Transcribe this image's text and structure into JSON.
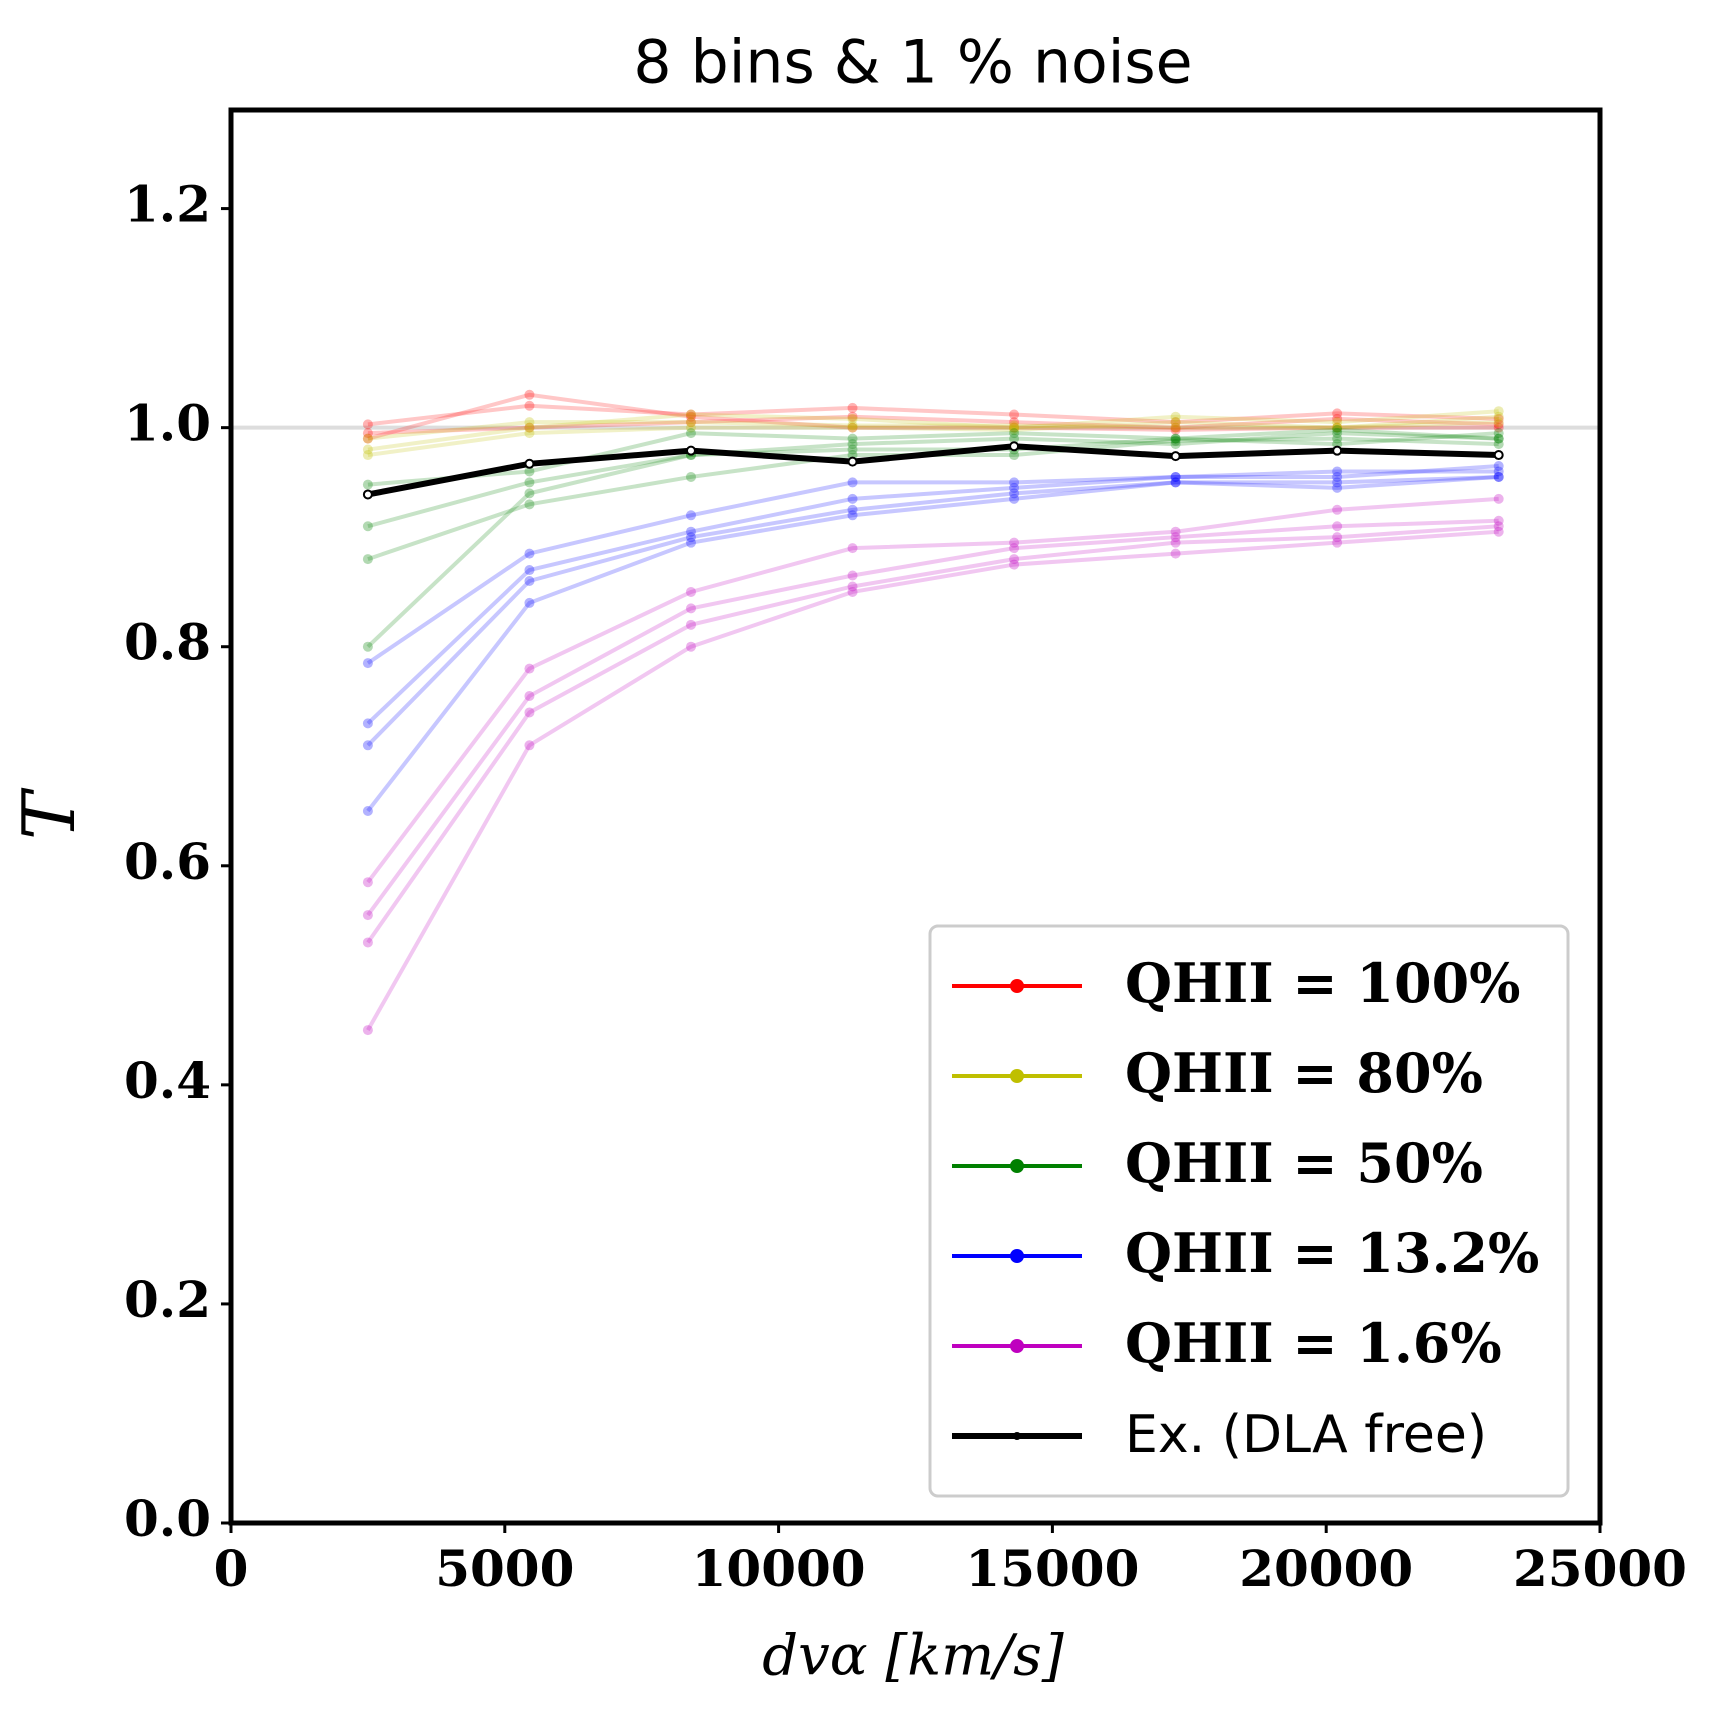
{
  "chart_data": {
    "type": "line",
    "title": "8 bins & 1 % noise",
    "x_label": "dvα [km/s]",
    "y_label": "T",
    "x": [
      2500,
      5450,
      8400,
      11350,
      14300,
      17250,
      20200,
      23150
    ],
    "xlim": [
      0,
      25000
    ],
    "xticks": [
      0,
      5000,
      10000,
      15000,
      20000,
      25000
    ],
    "ylim": [
      0,
      1.29
    ],
    "yticks": [
      {
        "value": 0,
        "label": "0.0"
      },
      0.2,
      0.4,
      0.6,
      0.8,
      {
        "value": 1,
        "label": "1.0"
      },
      1.2
    ],
    "reference_line": 1,
    "legend": "lower right",
    "series": [
      {
        "name": "QHII = 100%",
        "color": "#ff0000",
        "runs": [
          [
            1.003,
            1.02,
            1.012,
            1.018,
            1.012,
            1.005,
            1.013,
            1.008
          ],
          [
            0.995,
            1.0,
            1.005,
            1.01,
            1.005,
            1.0,
            1.008,
            1.003
          ],
          [
            0.99,
            1.03,
            1.01,
            1.0,
            1.0,
            0.998,
            1.0,
            1.0
          ]
        ]
      },
      {
        "name": "QHII = 80%",
        "color": "#bfbf00",
        "runs": [
          [
            0.98,
            1.0,
            1.012,
            1.008,
            1.0,
            1.01,
            1.005,
            1.015
          ],
          [
            0.975,
            0.995,
            1.0,
            1.0,
            0.998,
            1.005,
            1.0,
            1.01
          ],
          [
            0.99,
            1.005,
            1.005,
            1.002,
            1.002,
            1.0,
            1.0,
            1.005
          ]
        ]
      },
      {
        "name": "QHII = 50%",
        "color": "#008000",
        "runs": [
          [
            0.948,
            0.96,
            0.995,
            0.99,
            0.995,
            0.99,
            0.998,
            0.99
          ],
          [
            0.91,
            0.95,
            0.975,
            0.985,
            0.99,
            0.985,
            0.995,
            0.99
          ],
          [
            0.88,
            0.93,
            0.955,
            0.975,
            0.975,
            0.988,
            0.99,
            0.985
          ],
          [
            0.8,
            0.94,
            0.975,
            0.98,
            0.98,
            0.99,
            0.985,
            0.995
          ]
        ]
      },
      {
        "name": "QHII = 13.2%",
        "color": "#0000ff",
        "runs": [
          [
            0.785,
            0.885,
            0.92,
            0.95,
            0.95,
            0.955,
            0.96,
            0.96
          ],
          [
            0.73,
            0.87,
            0.905,
            0.935,
            0.945,
            0.955,
            0.955,
            0.965
          ],
          [
            0.71,
            0.86,
            0.9,
            0.925,
            0.94,
            0.95,
            0.95,
            0.955
          ],
          [
            0.65,
            0.84,
            0.895,
            0.92,
            0.935,
            0.95,
            0.945,
            0.955
          ]
        ]
      },
      {
        "name": "QHII = 1.6%",
        "color": "#bf00bf",
        "runs": [
          [
            0.585,
            0.78,
            0.85,
            0.89,
            0.895,
            0.905,
            0.925,
            0.935
          ],
          [
            0.555,
            0.755,
            0.835,
            0.865,
            0.89,
            0.9,
            0.91,
            0.915
          ],
          [
            0.53,
            0.74,
            0.82,
            0.855,
            0.88,
            0.895,
            0.9,
            0.91
          ],
          [
            0.45,
            0.71,
            0.8,
            0.85,
            0.875,
            0.885,
            0.895,
            0.905
          ]
        ]
      },
      {
        "name": "Ex. (DLA free)",
        "color": "#000000",
        "values": [
          0.939,
          0.967,
          0.979,
          0.969,
          0.983,
          0.974,
          0.979,
          0.975
        ]
      }
    ]
  }
}
